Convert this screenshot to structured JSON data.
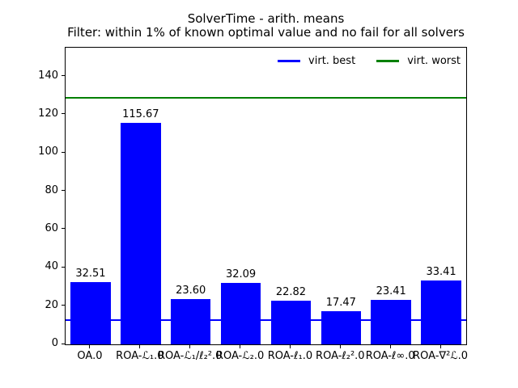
{
  "chart_data": {
    "type": "bar",
    "title": "SolverTime - arith. means",
    "subtitle": "Filter: within 1% of known optimal value and no fail for all solvers",
    "xlabel": "",
    "ylabel": "",
    "categories": [
      "OA.0",
      "ROA-ℒ₁.0",
      "ROA-ℒ₁/ℓ₂².0",
      "ROA-ℒ₂.0",
      "ROA-ℓ₁.0",
      "ROA-ℓ₂².0",
      "ROA-ℓ∞.0",
      "ROA-∇²ℒ.0"
    ],
    "values": [
      32.51,
      115.67,
      23.6,
      32.09,
      22.82,
      17.47,
      23.41,
      33.41
    ],
    "bar_color": "#0000ff",
    "bar_width_fraction": 0.8,
    "value_label_decimals": 2,
    "yticks": [
      0,
      20,
      40,
      60,
      80,
      100,
      120,
      140
    ],
    "ylim": [
      0,
      155
    ],
    "grid": false,
    "reference_lines": [
      {
        "name": "virt. best",
        "value": 12.6,
        "color": "#0000ff"
      },
      {
        "name": "virt. worst",
        "value": 129.0,
        "color": "#008000"
      }
    ],
    "legend": {
      "position": "upper right inside plot, horizontal",
      "entries": [
        {
          "label": "virt. best",
          "color": "#0000ff"
        },
        {
          "label": "virt. worst",
          "color": "#008000"
        }
      ]
    }
  }
}
